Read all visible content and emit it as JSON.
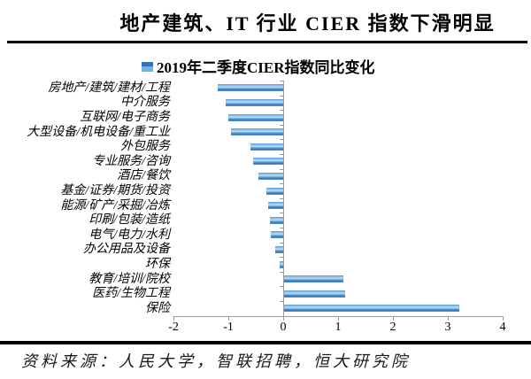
{
  "page": {
    "title": "地产建筑、IT 行业 CIER 指数下滑明显",
    "source": "资料来源：人民大学，智联招聘，恒大研究院"
  },
  "legend": {
    "label": "2019年二季度CIER指数同比变化"
  },
  "chart_data": {
    "type": "bar",
    "orientation": "horizontal",
    "title": "2019年二季度CIER指数同比变化",
    "categories": [
      "房地产/建筑/建材/工程",
      "中介服务",
      "互联网/电子商务",
      "大型设备/机电设备/重工业",
      "外包服务",
      "专业服务/咨询",
      "酒店/餐饮",
      "基金/证券/期货/投资",
      "能源/矿产/采掘/冶炼",
      "印刷/包装/造纸",
      "电气/电力/水利",
      "办公用品及设备",
      "环保",
      "教育/培训/院校",
      "医药/生物工程",
      "保险"
    ],
    "values": [
      -1.2,
      -1.05,
      -1.0,
      -0.95,
      -0.6,
      -0.55,
      -0.45,
      -0.3,
      -0.27,
      -0.24,
      -0.22,
      -0.15,
      -0.06,
      1.08,
      1.12,
      3.2
    ],
    "xlabel": "",
    "ylabel": "",
    "xlim": [
      -2,
      4
    ],
    "x_ticks": [
      -2,
      -1,
      0,
      1,
      2,
      3,
      4
    ],
    "grid": false,
    "legend_position": "top-left",
    "bar_color": "#4e94d6",
    "bar_color_dark": "#2f73b4",
    "bar_color_light": "#bedcf5",
    "axis_color": "#9b9b9b",
    "text_color": "#000000"
  }
}
